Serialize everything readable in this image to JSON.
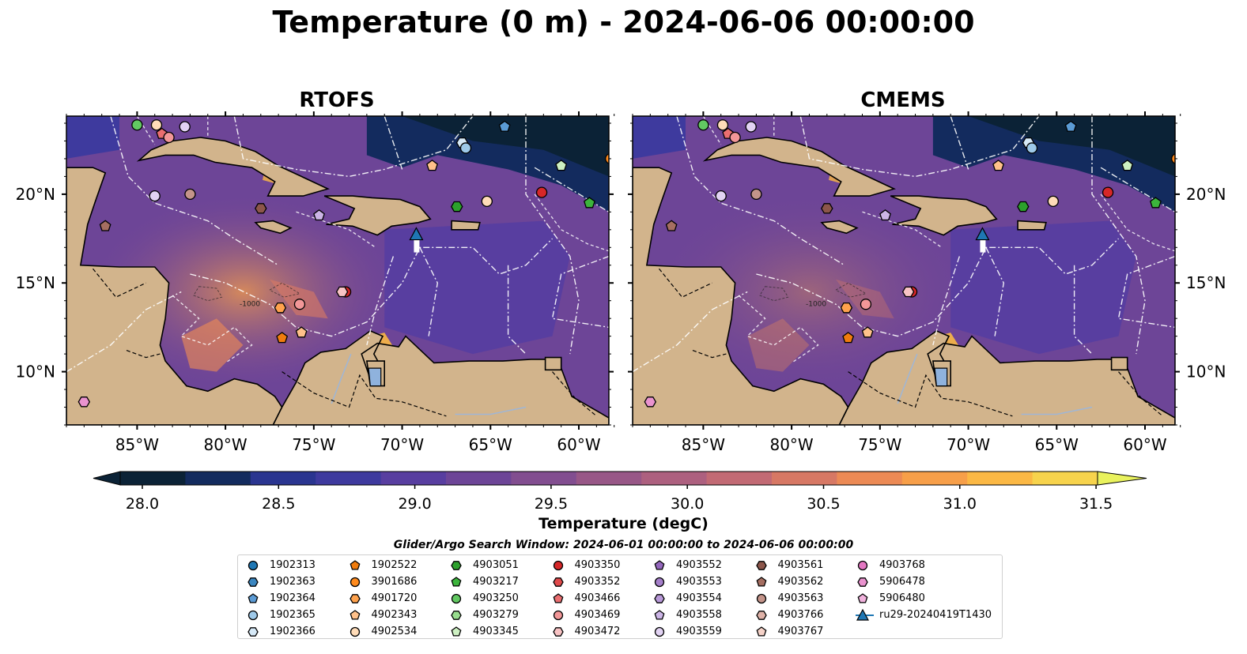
{
  "title": "Temperature (0 m) - 2024-06-06 00:00:00",
  "panels": [
    {
      "title": "RTOFS"
    },
    {
      "title": "CMEMS"
    }
  ],
  "axes": {
    "lon_ticks": [
      "85°W",
      "80°W",
      "75°W",
      "70°W",
      "65°W",
      "60°W"
    ],
    "lat_ticks": [
      "20°N",
      "15°N",
      "10°N"
    ]
  },
  "colorbar": {
    "title": "Temperature (degC)",
    "ticks": [
      "28.0",
      "28.5",
      "29.0",
      "29.5",
      "30.0",
      "30.5",
      "31.0",
      "31.5"
    ],
    "colors": [
      "#0b2236",
      "#132b5e",
      "#2a3590",
      "#3e3a9e",
      "#583ea0",
      "#6d4597",
      "#824e90",
      "#985787",
      "#ad607f",
      "#c26a74",
      "#d77864",
      "#ec8a55",
      "#f79f49",
      "#fbb844",
      "#f7d34c",
      "#e9f25d"
    ]
  },
  "legend": {
    "title": "Glider/Argo Search Window: 2024-06-01 00:00:00 to 2024-06-06 00:00:00",
    "columns": [
      [
        {
          "label": "1902313",
          "shape": "circle",
          "color": "#1f77b4"
        },
        {
          "label": "1902363",
          "shape": "hexagon",
          "color": "#3a86c0"
        },
        {
          "label": "1902364",
          "shape": "pentagon",
          "color": "#5b9bd5"
        },
        {
          "label": "1902365",
          "shape": "circle",
          "color": "#9ec9e9"
        },
        {
          "label": "1902366",
          "shape": "hexagon",
          "color": "#d6e9f7"
        }
      ],
      [
        {
          "label": "1902522",
          "shape": "pentagon",
          "color": "#f07c0e"
        },
        {
          "label": "3901686",
          "shape": "circle",
          "color": "#ff8a1c"
        },
        {
          "label": "4901720",
          "shape": "hexagon",
          "color": "#ffa24d"
        },
        {
          "label": "4902343",
          "shape": "pentagon",
          "color": "#ffc18a"
        },
        {
          "label": "4902534",
          "shape": "circle",
          "color": "#ffdcb8"
        }
      ],
      [
        {
          "label": "4903051",
          "shape": "hexagon",
          "color": "#2ca02c"
        },
        {
          "label": "4903217",
          "shape": "pentagon",
          "color": "#3cb43c"
        },
        {
          "label": "4903250",
          "shape": "circle",
          "color": "#62c862"
        },
        {
          "label": "4903279",
          "shape": "hexagon",
          "color": "#98dd8e"
        },
        {
          "label": "4903345",
          "shape": "pentagon",
          "color": "#cdf0c2"
        }
      ],
      [
        {
          "label": "4903350",
          "shape": "circle",
          "color": "#d62728"
        },
        {
          "label": "4903352",
          "shape": "hexagon",
          "color": "#e04a4b"
        },
        {
          "label": "4903466",
          "shape": "pentagon",
          "color": "#ea6e70"
        },
        {
          "label": "4903469",
          "shape": "circle",
          "color": "#f29798"
        },
        {
          "label": "4903472",
          "shape": "hexagon",
          "color": "#f8c3c4"
        }
      ],
      [
        {
          "label": "4903552",
          "shape": "pentagon",
          "color": "#9467bd"
        },
        {
          "label": "4903553",
          "shape": "circle",
          "color": "#a57fca"
        },
        {
          "label": "4903554",
          "shape": "hexagon",
          "color": "#b899d8"
        },
        {
          "label": "4903558",
          "shape": "pentagon",
          "color": "#ccb5e6"
        },
        {
          "label": "4903559",
          "shape": "circle",
          "color": "#e2d3f3"
        }
      ],
      [
        {
          "label": "4903561",
          "shape": "hexagon",
          "color": "#8c564b"
        },
        {
          "label": "4903562",
          "shape": "pentagon",
          "color": "#a56e61"
        },
        {
          "label": "4903563",
          "shape": "circle",
          "color": "#c4948a"
        },
        {
          "label": "4903766",
          "shape": "hexagon",
          "color": "#dfb2a8"
        },
        {
          "label": "4903767",
          "shape": "pentagon",
          "color": "#f5d2c8"
        }
      ],
      [
        {
          "label": "4903768",
          "shape": "circle",
          "color": "#e377c2"
        },
        {
          "label": "5906478",
          "shape": "hexagon",
          "color": "#ea93cf"
        },
        {
          "label": "5906480",
          "shape": "pentagon",
          "color": "#f1b2dd"
        },
        {
          "label": "ru29-20240419T1430",
          "shape": "glider",
          "color": "#1f77b4"
        }
      ]
    ]
  },
  "markers": [
    {
      "shape": "circle",
      "color": "#62c862",
      "lon": -85.0,
      "lat": 23.9
    },
    {
      "shape": "circle",
      "color": "#ffdcb8",
      "lon": -83.9,
      "lat": 23.9
    },
    {
      "shape": "circle",
      "color": "#e2d3f3",
      "lon": -82.3,
      "lat": 23.8
    },
    {
      "shape": "pentagon",
      "color": "#ea6e70",
      "lon": -83.6,
      "lat": 23.4
    },
    {
      "shape": "circle",
      "color": "#f29798",
      "lon": -83.2,
      "lat": 23.2
    },
    {
      "shape": "circle",
      "color": "#e2d3f3",
      "lon": -84.0,
      "lat": 19.9
    },
    {
      "shape": "circle",
      "color": "#c4948a",
      "lon": -82.0,
      "lat": 20.0
    },
    {
      "shape": "hexagon",
      "color": "#8c564b",
      "lon": -78.0,
      "lat": 19.2
    },
    {
      "shape": "pentagon",
      "color": "#a56e61",
      "lon": -86.8,
      "lat": 18.2
    },
    {
      "shape": "pentagon",
      "color": "#ccb5e6",
      "lon": -74.7,
      "lat": 18.8
    },
    {
      "shape": "hexagon",
      "color": "#d6e9f7",
      "lon": -66.6,
      "lat": 22.9
    },
    {
      "shape": "circle",
      "color": "#9ec9e9",
      "lon": -66.4,
      "lat": 22.6
    },
    {
      "shape": "pentagon",
      "color": "#5b9bd5",
      "lon": -64.2,
      "lat": 23.8
    },
    {
      "shape": "circle",
      "color": "#ff8a1c",
      "lon": -58.2,
      "lat": 22.0
    },
    {
      "shape": "circle",
      "color": "#1f77b4",
      "lon": -57.9,
      "lat": 21.8
    },
    {
      "shape": "pentagon",
      "color": "#ffc18a",
      "lon": -68.3,
      "lat": 21.6
    },
    {
      "shape": "pentagon",
      "color": "#cdf0c2",
      "lon": -61.0,
      "lat": 21.6
    },
    {
      "shape": "circle",
      "color": "#d62728",
      "lon": -62.1,
      "lat": 20.1
    },
    {
      "shape": "hexagon",
      "color": "#2ca02c",
      "lon": -66.9,
      "lat": 19.3
    },
    {
      "shape": "circle",
      "color": "#ffdcb8",
      "lon": -65.2,
      "lat": 19.6
    },
    {
      "shape": "pentagon",
      "color": "#3cb43c",
      "lon": -59.4,
      "lat": 19.5
    },
    {
      "shape": "hexagon",
      "color": "#ffa24d",
      "lon": -76.9,
      "lat": 13.6
    },
    {
      "shape": "circle",
      "color": "#f29798",
      "lon": -75.8,
      "lat": 13.8
    },
    {
      "shape": "circle",
      "color": "#d62728",
      "lon": -73.2,
      "lat": 14.5
    },
    {
      "shape": "hexagon",
      "color": "#f8c3c4",
      "lon": -73.4,
      "lat": 14.5
    },
    {
      "shape": "pentagon",
      "color": "#f07c0e",
      "lon": -76.8,
      "lat": 11.9
    },
    {
      "shape": "pentagon",
      "color": "#ffc18a",
      "lon": -75.7,
      "lat": 12.2
    },
    {
      "shape": "hexagon",
      "color": "#ea93cf",
      "lon": -88.0,
      "lat": 8.3
    }
  ],
  "glider": {
    "lon": -69.2,
    "lat": 17.7,
    "label": "ru29-20240419T1430"
  },
  "isobath_label": "-1000"
}
